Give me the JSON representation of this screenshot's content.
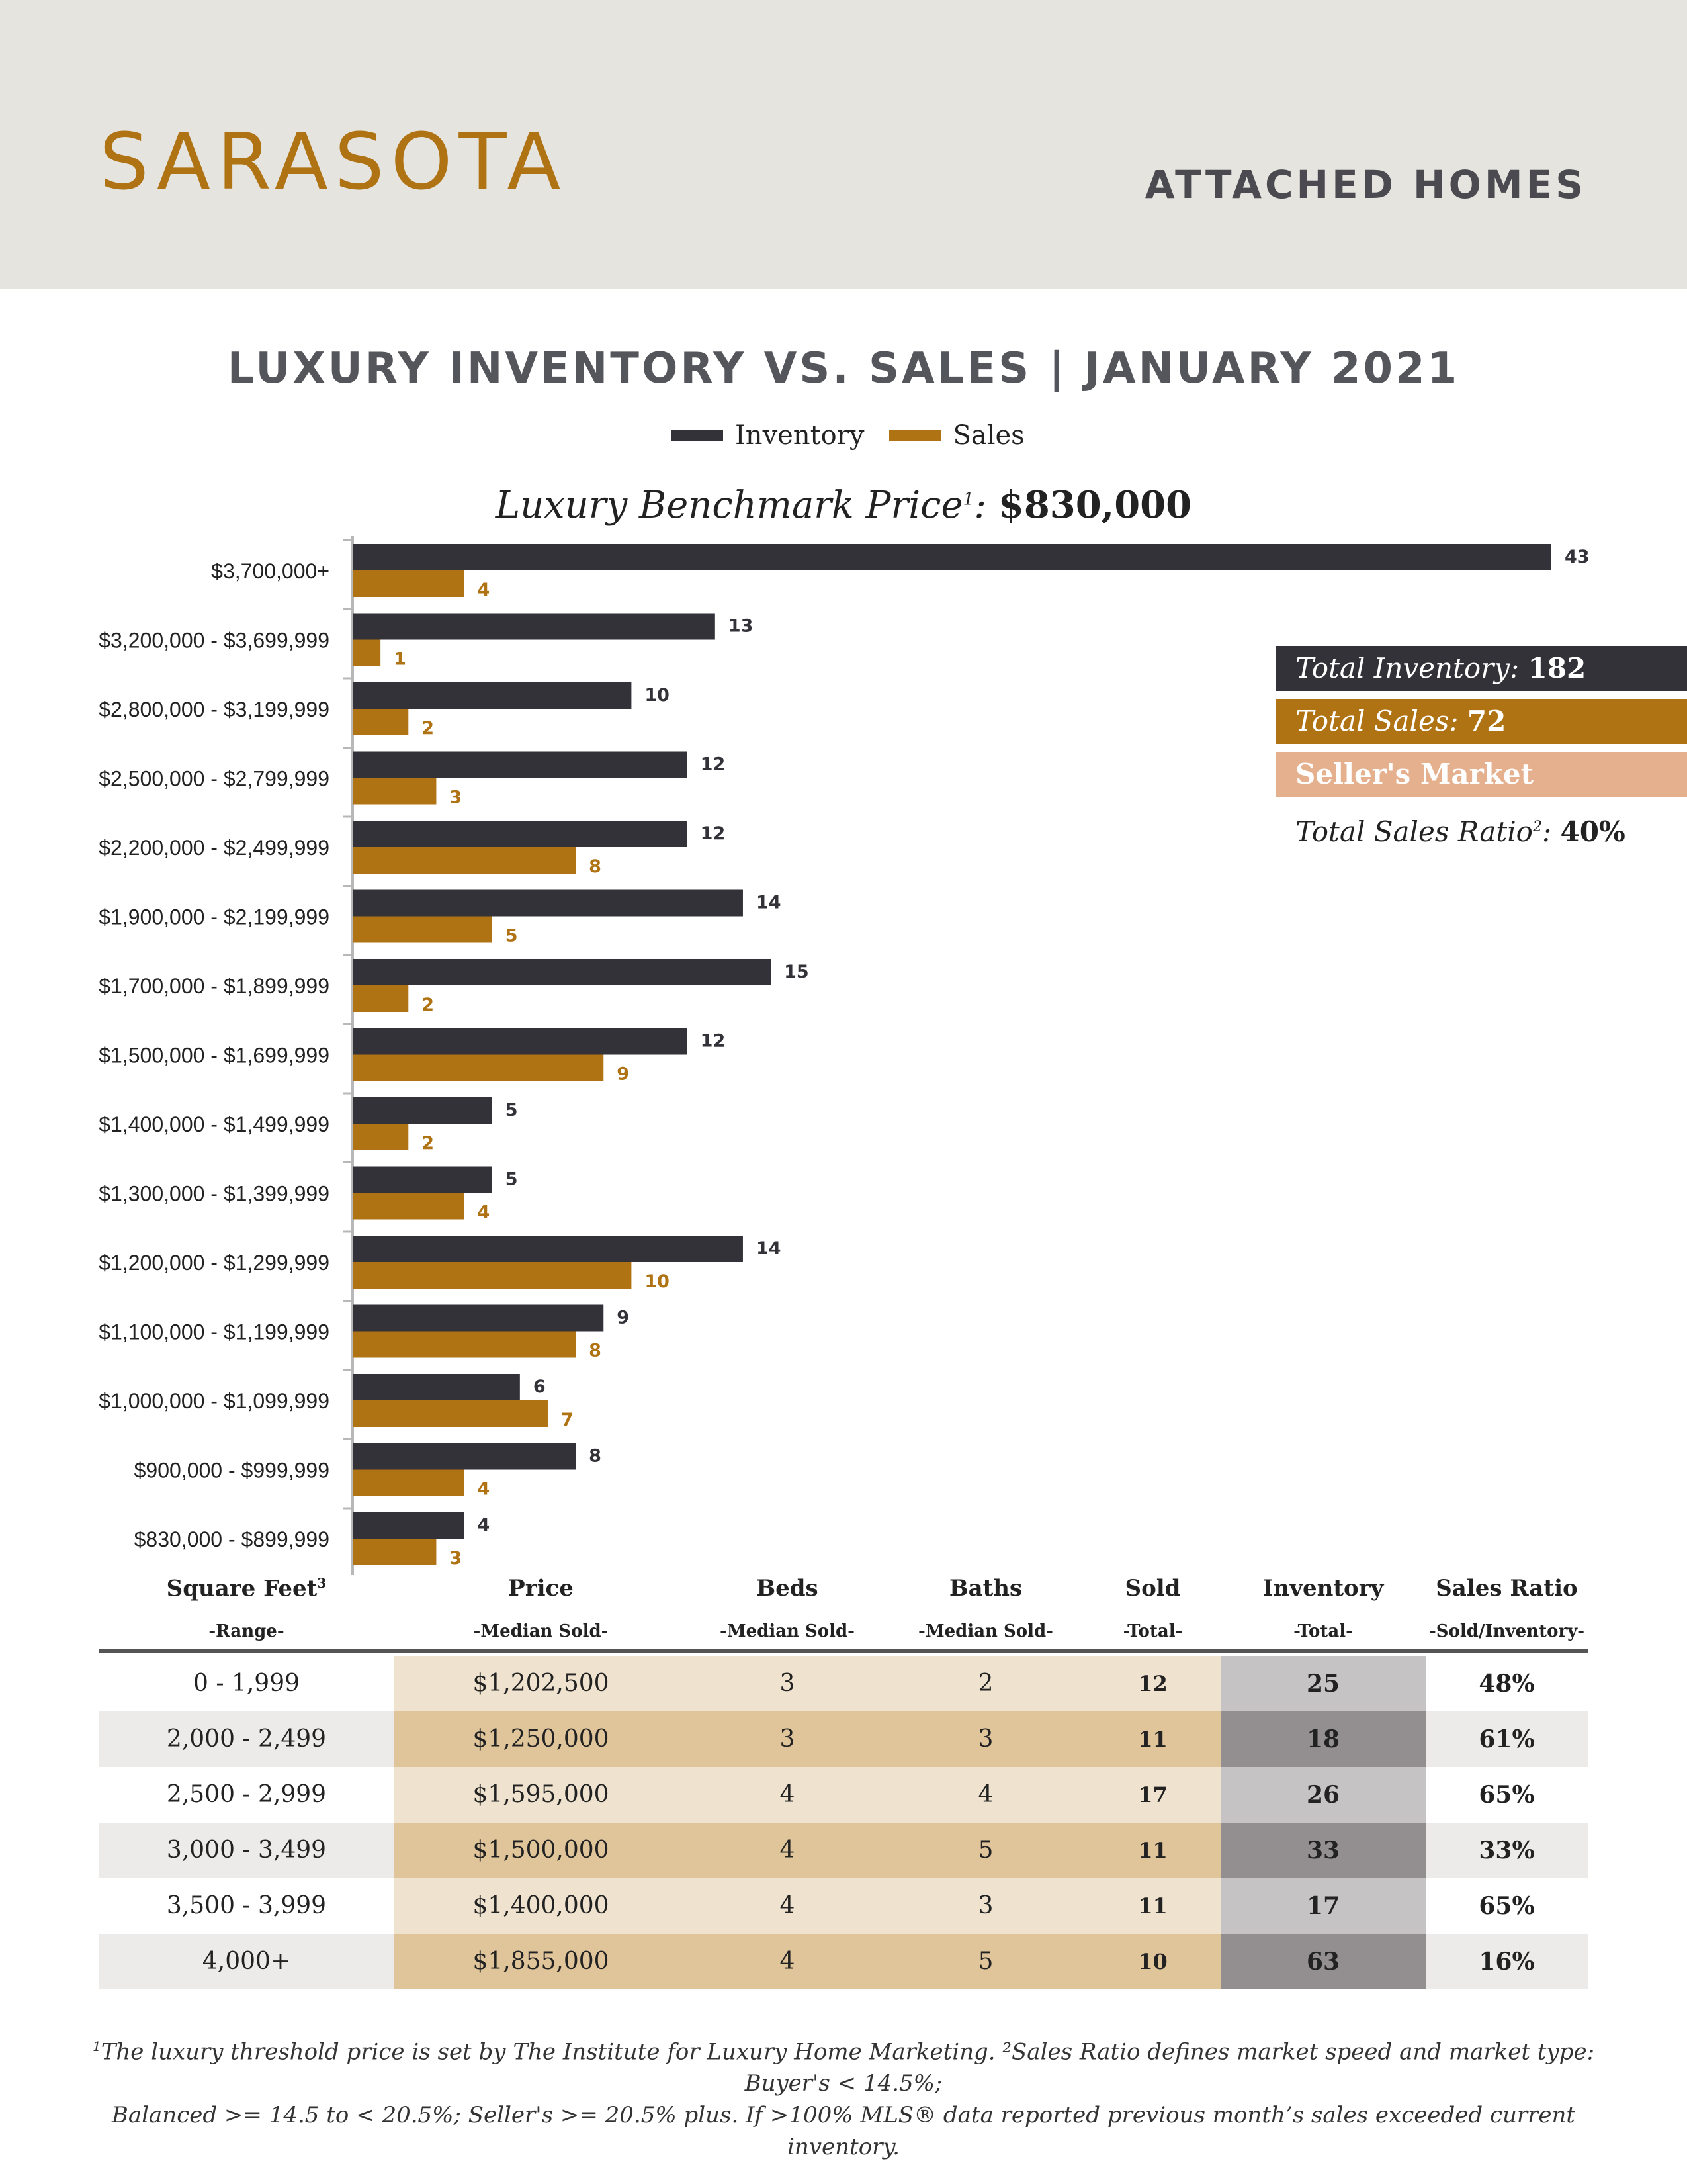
{
  "header": {
    "city": "SARASOTA",
    "subtitle": "ATTACHED HOMES"
  },
  "chart_data": {
    "type": "bar",
    "orientation": "horizontal",
    "title": "LUXURY INVENTORY VS. SALES | JANUARY 2021",
    "categories": [
      "$3,700,000+",
      "$3,200,000 - $3,699,999",
      "$2,800,000 - $3,199,999",
      "$2,500,000 - $2,799,999",
      "$2,200,000 - $2,499,999",
      "$1,900,000 - $2,199,999",
      "$1,700,000 - $1,899,999",
      "$1,500,000 - $1,699,999",
      "$1,400,000 - $1,499,999",
      "$1,300,000 - $1,399,999",
      "$1,200,000 - $1,299,999",
      "$1,100,000 - $1,199,999",
      "$1,000,000 - $1,099,999",
      "$900,000 - $999,999",
      "$830,000 - $899,999"
    ],
    "series": [
      {
        "name": "Inventory",
        "color": "#323238",
        "values": [
          43,
          13,
          10,
          12,
          12,
          14,
          15,
          12,
          5,
          5,
          14,
          9,
          6,
          8,
          4
        ]
      },
      {
        "name": "Sales",
        "color": "#b07313",
        "values": [
          4,
          1,
          2,
          3,
          8,
          5,
          2,
          9,
          2,
          4,
          10,
          8,
          7,
          4,
          3
        ]
      }
    ],
    "xlim": [
      0,
      43
    ],
    "legend_position": "top-center",
    "grid": false,
    "benchmark_label": "Luxury Benchmark Price",
    "benchmark_sup": "1",
    "benchmark_value": "$830,000"
  },
  "summary": {
    "inventory_label": "Total Inventory:",
    "inventory_value": "182",
    "sales_label": "Total Sales:",
    "sales_value": "72",
    "market": "Seller's Market",
    "ratio_label": "Total Sales Ratio",
    "ratio_sup": "2",
    "ratio_value": "40%",
    "colors": {
      "inventory": "#323238",
      "sales": "#b07313",
      "market": "#e4b08e"
    }
  },
  "table": {
    "headers": [
      {
        "main": "Square Feet",
        "sup": "3",
        "sub": "-Range-"
      },
      {
        "main": "Price",
        "sup": "",
        "sub": "-Median Sold-"
      },
      {
        "main": "Beds",
        "sup": "",
        "sub": "-Median Sold-"
      },
      {
        "main": "Baths",
        "sup": "",
        "sub": "-Median Sold-"
      },
      {
        "main": "Sold",
        "sup": "",
        "sub": "-Total-"
      },
      {
        "main": "Inventory",
        "sup": "",
        "sub": "-Total-"
      },
      {
        "main": "Sales Ratio",
        "sup": "",
        "sub": "-Sold/Inventory-"
      }
    ],
    "rows": [
      [
        "0 - 1,999",
        "$1,202,500",
        "3",
        "2",
        "12",
        "25",
        "48%"
      ],
      [
        "2,000 - 2,499",
        "$1,250,000",
        "3",
        "3",
        "11",
        "18",
        "61%"
      ],
      [
        "2,500 - 2,999",
        "$1,595,000",
        "4",
        "4",
        "17",
        "26",
        "65%"
      ],
      [
        "3,000 - 3,499",
        "$1,500,000",
        "4",
        "5",
        "11",
        "33",
        "33%"
      ],
      [
        "3,500 - 3,999",
        "$1,400,000",
        "4",
        "3",
        "11",
        "17",
        "65%"
      ],
      [
        "4,000+",
        "$1,855,000",
        "4",
        "5",
        "10",
        "63",
        "16%"
      ]
    ]
  },
  "footnote": {
    "line1": "The luxury threshold price is set by The Institute for Luxury Home Marketing. ²Sales Ratio defines market speed and market type: Buyer's < 14.5%;",
    "line1_sup": "1",
    "line2": "Balanced >= 14.5 to < 20.5%; Seller's >= 20.5% plus. If >100% MLS® data reported previous month’s sales exceeded current inventory."
  }
}
